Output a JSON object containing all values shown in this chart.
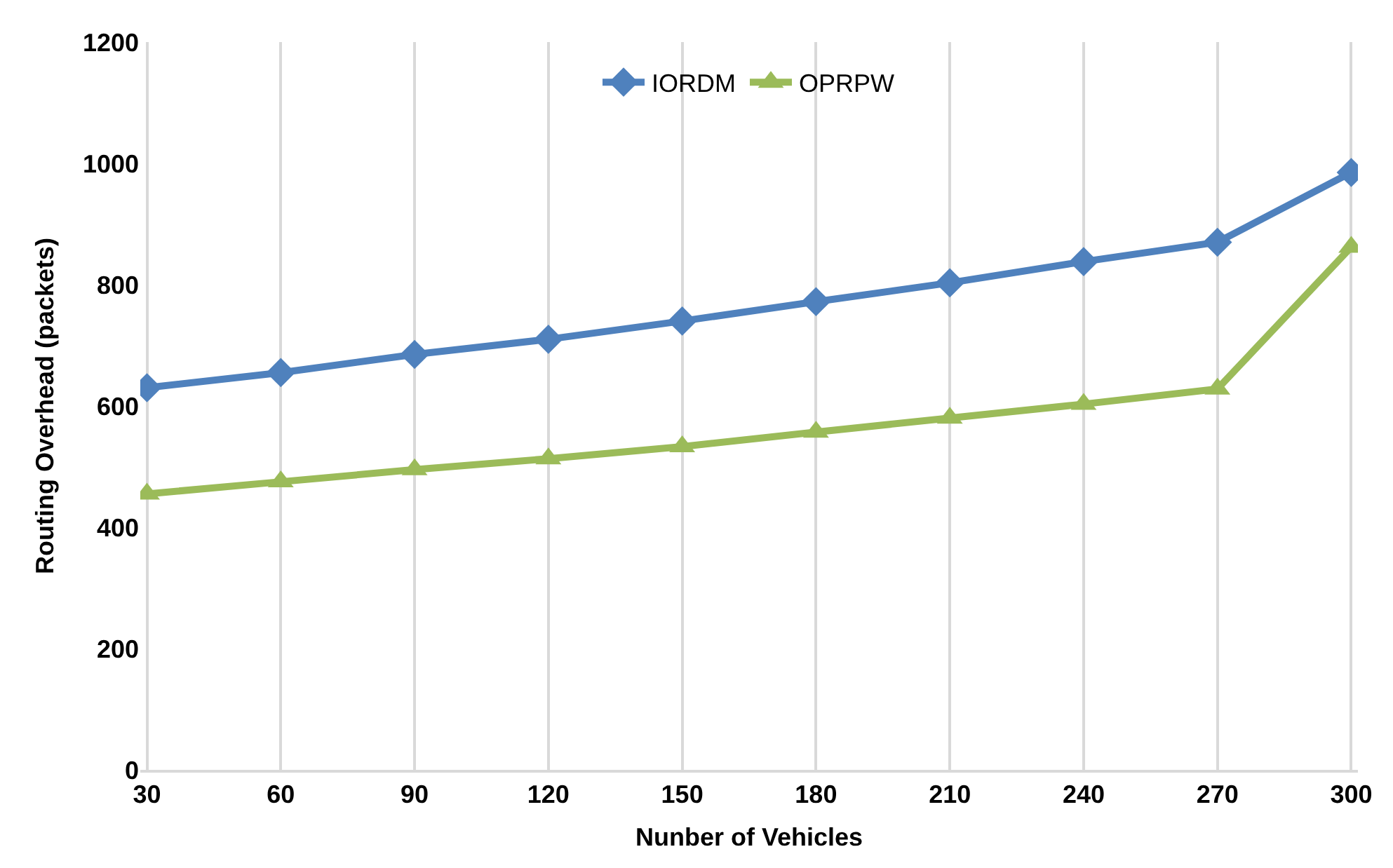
{
  "chart_data": {
    "type": "line",
    "xlabel": "Nunber of Vehicles",
    "ylabel": "Routing Overhead (packets)",
    "categories": [
      "30",
      "60",
      "90",
      "120",
      "150",
      "180",
      "210",
      "240",
      "270",
      "300"
    ],
    "series": [
      {
        "name": "IORDM",
        "color": "#4f81bd",
        "marker": "diamond",
        "values": [
          630,
          655,
          685,
          710,
          740,
          772,
          803,
          838,
          870,
          985
        ]
      },
      {
        "name": "OPRPW",
        "color": "#9bbb59",
        "marker": "triangle",
        "values": [
          455,
          475,
          495,
          513,
          533,
          557,
          580,
          603,
          628,
          862
        ]
      }
    ],
    "ylim": [
      0,
      1200
    ],
    "yticks": [
      0,
      200,
      400,
      600,
      800,
      1000,
      1200
    ],
    "grid": "x",
    "legend": "top"
  }
}
